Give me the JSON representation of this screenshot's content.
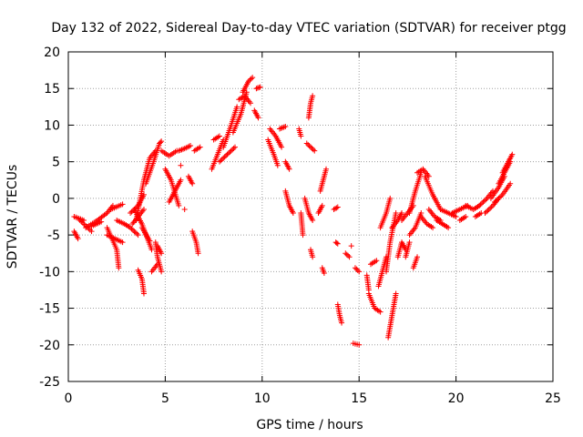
{
  "chart_data": {
    "type": "scatter",
    "title": "Day 132 of 2022, Sidereal Day-to-day VTEC variation (SDTVAR) for receiver ptgg",
    "xlabel": "GPS time / hours",
    "ylabel": "SDTVAR / TECUs",
    "xlim": [
      0,
      25
    ],
    "ylim": [
      -25,
      20
    ],
    "xticks": [
      0,
      5,
      10,
      15,
      20,
      25
    ],
    "yticks": [
      -25,
      -20,
      -15,
      -10,
      -5,
      0,
      5,
      10,
      15,
      20
    ],
    "grid": true,
    "marker": "+",
    "series": [
      {
        "name": "SDTVAR",
        "color": "#ff0000",
        "segments": [
          [
            [
              0.3,
              -2.5
            ],
            [
              0.8,
              -3.0
            ]
          ],
          [
            [
              0.3,
              -4.5
            ],
            [
              0.5,
              -5.5
            ]
          ],
          [
            [
              0.6,
              -3.0
            ],
            [
              1.2,
              -4.5
            ]
          ],
          [
            [
              0.9,
              -4.0
            ],
            [
              1.5,
              -3.0
            ],
            [
              2.0,
              -2.0
            ],
            [
              2.3,
              -1.0
            ]
          ],
          [
            [
              1.2,
              -3.8
            ],
            [
              1.7,
              -3.2
            ]
          ],
          [
            [
              2.2,
              -1.5
            ],
            [
              2.8,
              -0.8
            ]
          ],
          [
            [
              2.0,
              -4.0
            ],
            [
              2.5,
              -7.0
            ],
            [
              2.6,
              -9.5
            ]
          ],
          [
            [
              2.0,
              -5.0
            ],
            [
              2.4,
              -5.5
            ],
            [
              2.8,
              -6.0
            ]
          ],
          [
            [
              2.5,
              -3.0
            ],
            [
              2.9,
              -3.5
            ],
            [
              3.2,
              -4.0
            ],
            [
              3.6,
              -5.0
            ]
          ],
          [
            [
              3.2,
              -2.0
            ],
            [
              3.6,
              -1.0
            ],
            [
              3.9,
              0.5
            ]
          ],
          [
            [
              3.3,
              -3.5
            ],
            [
              3.6,
              -2.5
            ],
            [
              3.9,
              -1.5
            ]
          ],
          [
            [
              3.4,
              -1.5
            ],
            [
              3.8,
              -3.5
            ],
            [
              4.3,
              -7.0
            ]
          ],
          [
            [
              3.5,
              -3.0
            ],
            [
              3.9,
              2.5
            ],
            [
              4.2,
              5.5
            ],
            [
              4.5,
              6.5
            ]
          ],
          [
            [
              3.6,
              -9.8
            ],
            [
              3.8,
              -11.0
            ],
            [
              3.9,
              -13.0
            ]
          ],
          [
            [
              3.8,
              -4.0
            ],
            [
              4.2,
              -5.8
            ]
          ],
          [
            [
              4.0,
              2.0
            ],
            [
              4.4,
              5.0
            ],
            [
              4.7,
              7.5
            ],
            [
              4.8,
              7.8
            ]
          ],
          [
            [
              4.3,
              -10.0
            ],
            [
              4.6,
              -9.0
            ]
          ],
          [
            [
              4.5,
              -6.0
            ],
            [
              4.6,
              -8.0
            ],
            [
              4.8,
              -10.0
            ]
          ],
          [
            [
              4.6,
              -6.5
            ],
            [
              4.8,
              -7.5
            ]
          ],
          [
            [
              4.8,
              6.5
            ],
            [
              5.2,
              5.8
            ],
            [
              5.6,
              6.5
            ]
          ],
          [
            [
              5.0,
              4.0
            ],
            [
              5.3,
              2.5
            ],
            [
              5.7,
              -1.0
            ]
          ],
          [
            [
              5.2,
              -0.5
            ],
            [
              5.5,
              1.0
            ],
            [
              5.8,
              2.5
            ]
          ],
          [
            [
              5.7,
              6.5
            ],
            [
              6.0,
              6.8
            ],
            [
              6.3,
              7.2
            ]
          ],
          [
            [
              5.8,
              4.5
            ]
          ],
          [
            [
              6.0,
              -1.5
            ]
          ],
          [
            [
              6.2,
              3.0
            ],
            [
              6.4,
              2.0
            ]
          ],
          [
            [
              6.4,
              -4.5
            ],
            [
              6.6,
              -6.0
            ],
            [
              6.7,
              -7.5
            ]
          ],
          [
            [
              6.5,
              6.5
            ],
            [
              6.8,
              7.0
            ]
          ],
          [
            [
              7.4,
              4.0
            ],
            [
              7.7,
              6.0
            ],
            [
              8.0,
              8.0
            ]
          ],
          [
            [
              7.5,
              8.0
            ],
            [
              7.8,
              8.5
            ]
          ],
          [
            [
              7.8,
              5.0
            ],
            [
              8.2,
              6.0
            ],
            [
              8.6,
              7.0
            ]
          ],
          [
            [
              8.0,
              7.0
            ],
            [
              8.4,
              10.0
            ],
            [
              8.7,
              12.5
            ]
          ],
          [
            [
              8.5,
              9.0
            ],
            [
              8.9,
              11.5
            ],
            [
              9.2,
              14.5
            ]
          ],
          [
            [
              8.8,
              13.5
            ],
            [
              9.1,
              14.0
            ],
            [
              9.4,
              13.0
            ]
          ],
          [
            [
              9.0,
              14.5
            ],
            [
              9.3,
              16.0
            ],
            [
              9.5,
              16.5
            ]
          ],
          [
            [
              9.6,
              12.0
            ],
            [
              9.8,
              11.0
            ]
          ],
          [
            [
              9.7,
              15.0
            ],
            [
              9.9,
              15.2
            ]
          ],
          [
            [
              10.3,
              8.0
            ],
            [
              10.6,
              6.0
            ],
            [
              10.8,
              4.5
            ]
          ],
          [
            [
              10.4,
              9.5
            ],
            [
              10.7,
              8.5
            ],
            [
              11.0,
              7.0
            ]
          ],
          [
            [
              10.9,
              9.5
            ],
            [
              11.2,
              9.8
            ]
          ],
          [
            [
              11.2,
              5.0
            ],
            [
              11.4,
              4.0
            ]
          ],
          [
            [
              11.2,
              1.0
            ],
            [
              11.4,
              -1.0
            ],
            [
              11.6,
              -2.0
            ]
          ],
          [
            [
              11.9,
              9.5
            ],
            [
              12.0,
              8.5
            ]
          ],
          [
            [
              12.0,
              -2.0
            ],
            [
              12.1,
              -5.0
            ]
          ],
          [
            [
              12.2,
              0.0
            ],
            [
              12.4,
              -2.0
            ],
            [
              12.6,
              -3.0
            ]
          ],
          [
            [
              12.3,
              7.5
            ],
            [
              12.5,
              7.0
            ],
            [
              12.7,
              6.5
            ]
          ],
          [
            [
              12.4,
              11.0
            ],
            [
              12.5,
              13.0
            ],
            [
              12.6,
              14.0
            ]
          ],
          [
            [
              12.5,
              -7.0
            ],
            [
              12.6,
              -8.0
            ]
          ],
          [
            [
              12.9,
              -2.0
            ],
            [
              13.1,
              -1.0
            ]
          ],
          [
            [
              13.0,
              1.0
            ],
            [
              13.2,
              3.0
            ],
            [
              13.3,
              4.0
            ]
          ],
          [
            [
              13.1,
              -9.5
            ],
            [
              13.2,
              -10.2
            ]
          ],
          [
            [
              13.7,
              -1.5
            ],
            [
              13.9,
              -1.2
            ]
          ],
          [
            [
              13.8,
              -6.0
            ],
            [
              13.9,
              -6.2
            ]
          ],
          [
            [
              13.9,
              -14.5
            ],
            [
              14.0,
              -16.0
            ],
            [
              14.1,
              -17.0
            ]
          ],
          [
            [
              14.3,
              -7.5
            ],
            [
              14.5,
              -8.0
            ]
          ],
          [
            [
              14.6,
              -6.5
            ]
          ],
          [
            [
              14.7,
              -19.8
            ],
            [
              15.0,
              -20.0
            ]
          ],
          [
            [
              14.8,
              -9.5
            ],
            [
              15.0,
              -10.0
            ]
          ],
          [
            [
              15.4,
              -10.5
            ],
            [
              15.5,
              -12.5
            ]
          ],
          [
            [
              15.5,
              -13.0
            ],
            [
              15.8,
              -15.0
            ],
            [
              16.1,
              -15.5
            ]
          ],
          [
            [
              15.6,
              -9.0
            ],
            [
              15.9,
              -8.5
            ]
          ],
          [
            [
              16.0,
              -12.0
            ],
            [
              16.2,
              -10.0
            ],
            [
              16.4,
              -8.0
            ]
          ],
          [
            [
              16.1,
              -4.0
            ],
            [
              16.4,
              -2.0
            ],
            [
              16.6,
              0.0
            ]
          ],
          [
            [
              16.4,
              -10.0
            ],
            [
              16.6,
              -6.0
            ],
            [
              16.9,
              -2.0
            ]
          ],
          [
            [
              16.5,
              -19.0
            ],
            [
              16.7,
              -16.0
            ],
            [
              16.9,
              -13.0
            ]
          ],
          [
            [
              16.7,
              -4.0
            ],
            [
              17.0,
              -3.0
            ],
            [
              17.2,
              -2.0
            ]
          ],
          [
            [
              17.0,
              -8.0
            ],
            [
              17.2,
              -6.0
            ],
            [
              17.4,
              -7.0
            ]
          ],
          [
            [
              17.2,
              -3.0
            ],
            [
              17.5,
              -2.0
            ],
            [
              17.8,
              -1.0
            ]
          ],
          [
            [
              17.4,
              -8.0
            ],
            [
              17.6,
              -6.0
            ]
          ],
          [
            [
              17.6,
              -2.0
            ],
            [
              17.9,
              1.0
            ],
            [
              18.2,
              3.5
            ]
          ],
          [
            [
              17.6,
              -5.0
            ],
            [
              17.9,
              -4.0
            ],
            [
              18.2,
              -2.0
            ]
          ],
          [
            [
              17.8,
              -9.5
            ],
            [
              18.0,
              -8.0
            ]
          ],
          [
            [
              18.0,
              3.5
            ],
            [
              18.3,
              4.0
            ],
            [
              18.6,
              3.0
            ]
          ],
          [
            [
              18.2,
              -2.5
            ],
            [
              18.5,
              -3.5
            ],
            [
              18.8,
              -4.0
            ]
          ],
          [
            [
              18.4,
              3.0
            ],
            [
              18.8,
              0.5
            ],
            [
              19.2,
              -1.5
            ]
          ],
          [
            [
              18.6,
              -1.5
            ],
            [
              18.9,
              -2.5
            ],
            [
              19.2,
              -3.0
            ]
          ],
          [
            [
              19.0,
              -3.0
            ],
            [
              19.3,
              -3.5
            ],
            [
              19.6,
              -4.0
            ]
          ],
          [
            [
              19.2,
              -1.5
            ],
            [
              19.6,
              -2.0
            ],
            [
              20.0,
              -2.5
            ]
          ],
          [
            [
              19.8,
              -2.0
            ],
            [
              20.2,
              -1.5
            ],
            [
              20.6,
              -1.0
            ]
          ],
          [
            [
              20.2,
              -3.0
            ],
            [
              20.5,
              -2.5
            ]
          ],
          [
            [
              20.5,
              -1.0
            ],
            [
              20.9,
              -1.5
            ],
            [
              21.2,
              -1.0
            ]
          ],
          [
            [
              21.0,
              -2.5
            ],
            [
              21.3,
              -2.0
            ]
          ],
          [
            [
              21.2,
              -1.0
            ],
            [
              21.6,
              0.0
            ],
            [
              21.9,
              1.0
            ]
          ],
          [
            [
              21.5,
              -2.0
            ],
            [
              21.9,
              -1.0
            ],
            [
              22.2,
              0.0
            ]
          ],
          [
            [
              21.8,
              0.0
            ],
            [
              22.2,
              1.5
            ],
            [
              22.5,
              3.0
            ]
          ],
          [
            [
              22.0,
              -0.5
            ],
            [
              22.4,
              0.5
            ],
            [
              22.8,
              2.0
            ]
          ],
          [
            [
              22.2,
              2.0
            ],
            [
              22.5,
              3.5
            ],
            [
              22.8,
              5.0
            ]
          ],
          [
            [
              22.4,
              3.5
            ],
            [
              22.7,
              5.0
            ],
            [
              22.9,
              6.0
            ]
          ]
        ]
      }
    ]
  }
}
